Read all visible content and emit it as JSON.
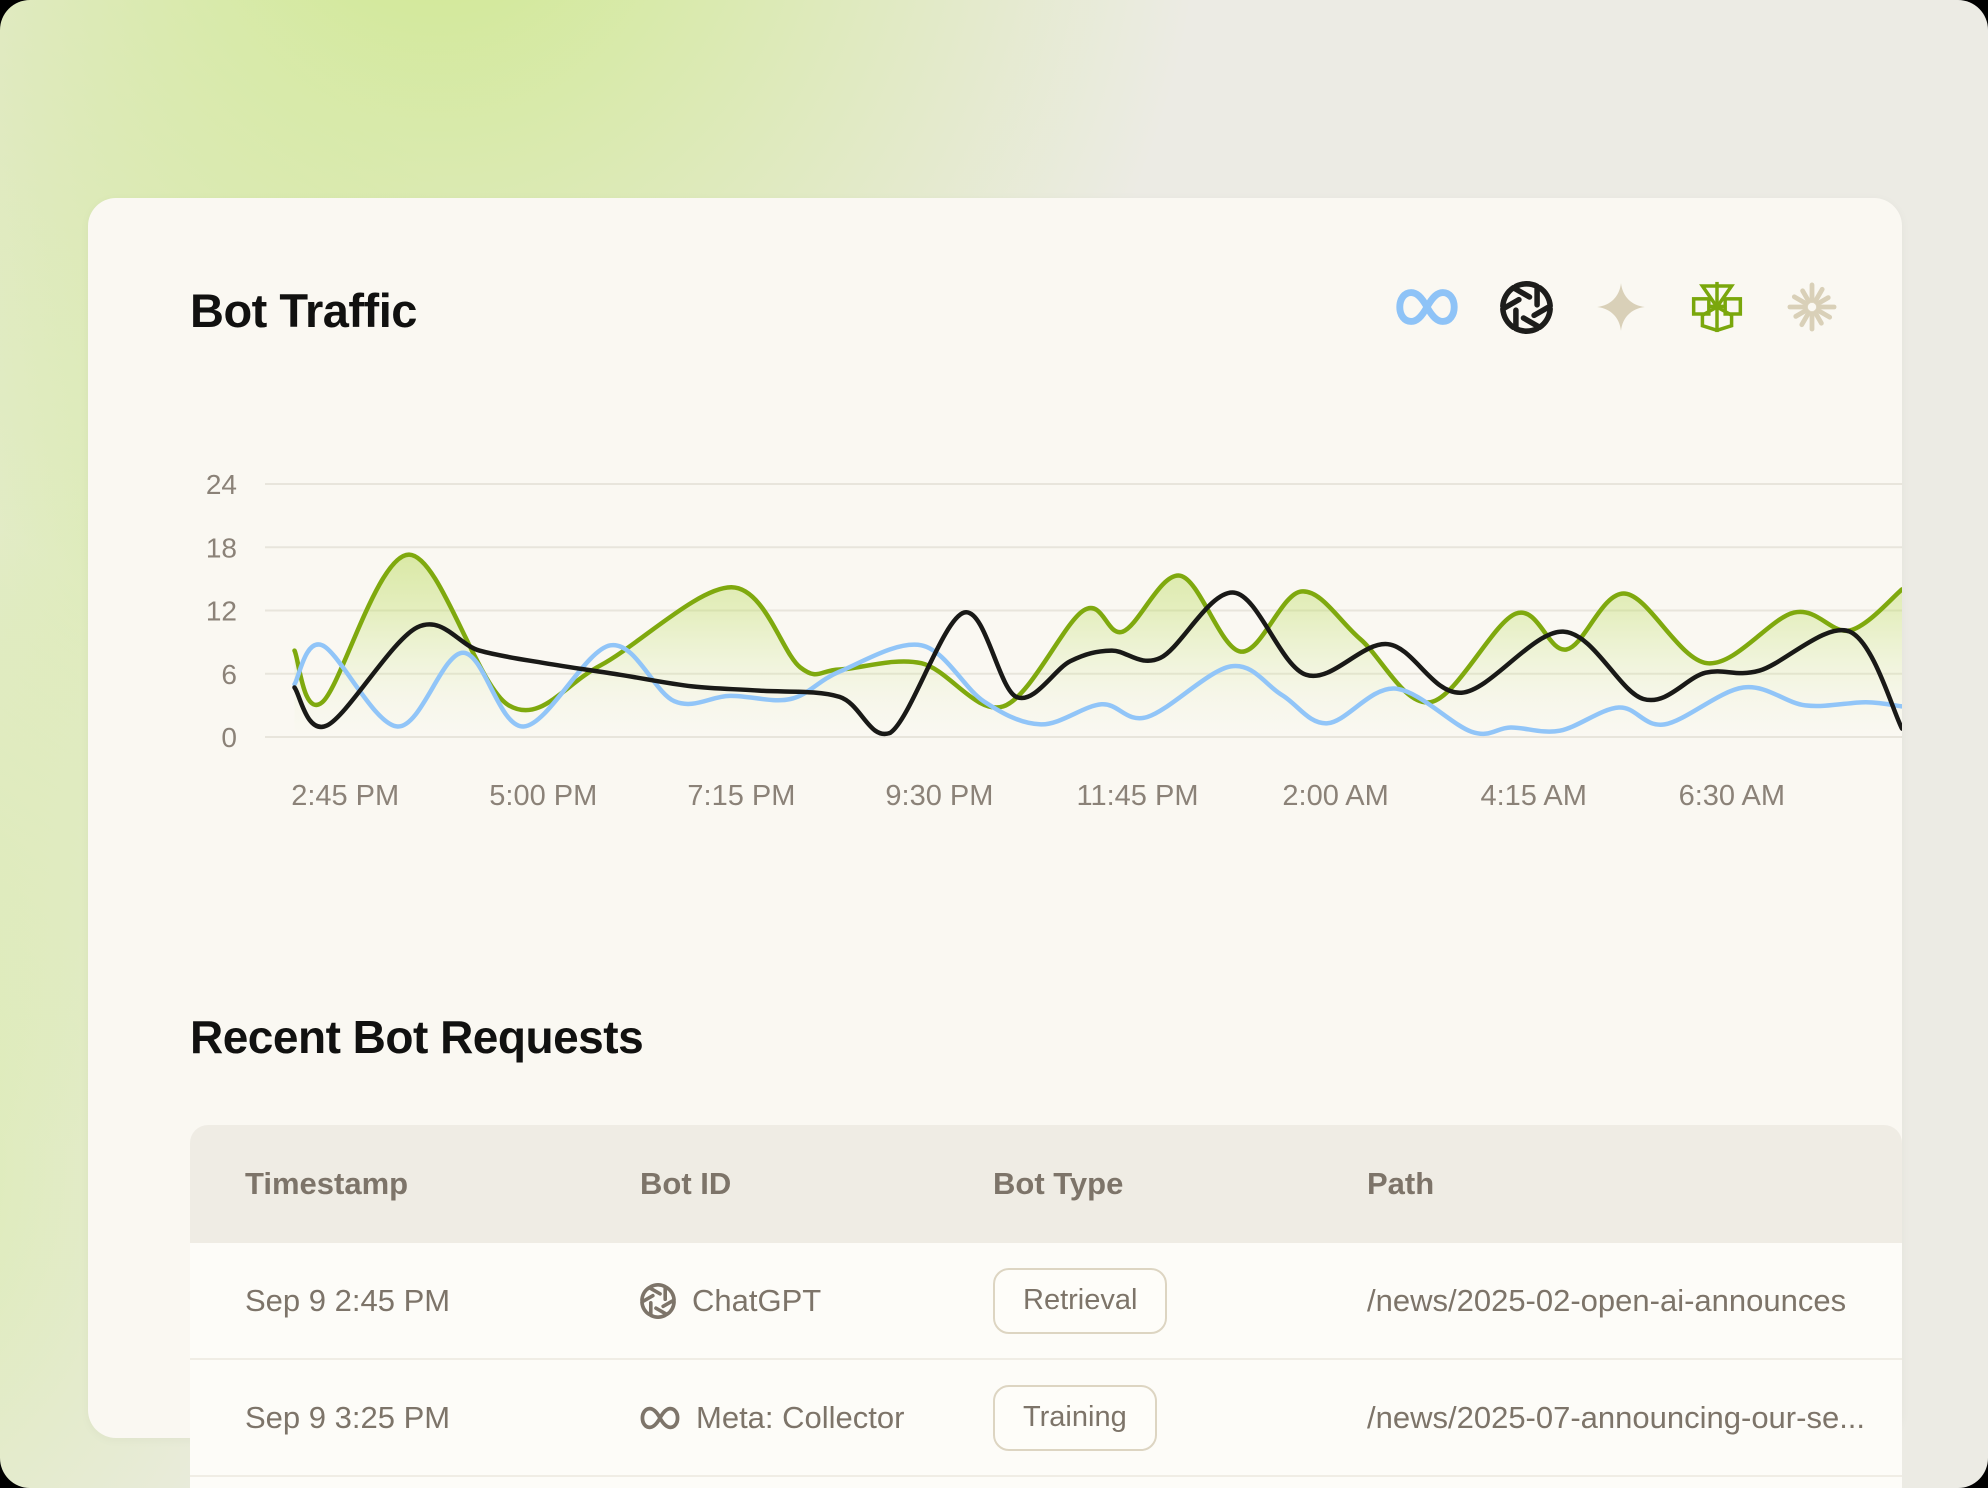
{
  "header": {
    "title": "Bot Traffic",
    "icons": [
      {
        "name": "meta",
        "color": "#8ec3f7"
      },
      {
        "name": "openai",
        "color": "#1d1d1b"
      },
      {
        "name": "sparkle",
        "color": "#d9d0b8"
      },
      {
        "name": "green-burst",
        "color": "#7aa70c"
      },
      {
        "name": "starburst",
        "color": "#d9d0b8"
      }
    ]
  },
  "chart_data": {
    "type": "line",
    "title": "Bot Traffic",
    "xlabel": "",
    "ylabel": "",
    "ylim": [
      0,
      24
    ],
    "yticks": [
      24,
      18,
      12,
      6,
      0
    ],
    "grid": true,
    "legend": "none",
    "xticks": [
      {
        "label": "2:45 PM",
        "x": 0.049
      },
      {
        "label": "5:00 PM",
        "x": 0.17
      },
      {
        "label": "7:15 PM",
        "x": 0.291
      },
      {
        "label": "9:30 PM",
        "x": 0.412
      },
      {
        "label": "11:45 PM",
        "x": 0.533
      },
      {
        "label": "2:00 AM",
        "x": 0.654
      },
      {
        "label": "4:15 AM",
        "x": 0.775
      },
      {
        "label": "6:30 AM",
        "x": 0.896
      }
    ],
    "colors": {
      "grid": "#e8e5dc",
      "tick_text": "#8b8278"
    },
    "series": [
      {
        "name": "green",
        "color": "#7fa90e",
        "fill": true,
        "points": [
          [
            0.018,
            8.2
          ],
          [
            0.035,
            3.3
          ],
          [
            0.088,
            17.3
          ],
          [
            0.149,
            3.0
          ],
          [
            0.205,
            6.8
          ],
          [
            0.285,
            14.2
          ],
          [
            0.327,
            6.6
          ],
          [
            0.351,
            6.4
          ],
          [
            0.401,
            7.0
          ],
          [
            0.451,
            2.9
          ],
          [
            0.5,
            12.0
          ],
          [
            0.524,
            10.0
          ],
          [
            0.559,
            15.3
          ],
          [
            0.596,
            8.1
          ],
          [
            0.633,
            13.8
          ],
          [
            0.669,
            9.3
          ],
          [
            0.712,
            3.3
          ],
          [
            0.764,
            11.7
          ],
          [
            0.795,
            8.3
          ],
          [
            0.831,
            13.6
          ],
          [
            0.881,
            7.0
          ],
          [
            0.934,
            11.8
          ],
          [
            0.968,
            10.1
          ],
          [
            1.0,
            14.0
          ]
        ]
      },
      {
        "name": "blue",
        "color": "#91c5f8",
        "fill": false,
        "points": [
          [
            0.018,
            5.0
          ],
          [
            0.035,
            8.7
          ],
          [
            0.081,
            1.0
          ],
          [
            0.121,
            8.0
          ],
          [
            0.158,
            1.0
          ],
          [
            0.211,
            8.7
          ],
          [
            0.25,
            3.4
          ],
          [
            0.284,
            3.9
          ],
          [
            0.321,
            3.6
          ],
          [
            0.351,
            6.2
          ],
          [
            0.401,
            8.7
          ],
          [
            0.439,
            3.4
          ],
          [
            0.474,
            1.2
          ],
          [
            0.511,
            3.1
          ],
          [
            0.539,
            1.9
          ],
          [
            0.59,
            6.7
          ],
          [
            0.621,
            4.0
          ],
          [
            0.649,
            1.3
          ],
          [
            0.69,
            4.6
          ],
          [
            0.737,
            0.5
          ],
          [
            0.761,
            0.9
          ],
          [
            0.791,
            0.6
          ],
          [
            0.827,
            2.8
          ],
          [
            0.855,
            1.2
          ],
          [
            0.903,
            4.7
          ],
          [
            0.941,
            3.0
          ],
          [
            0.978,
            3.3
          ],
          [
            1.0,
            2.9
          ]
        ]
      },
      {
        "name": "black",
        "color": "#191917",
        "fill": false,
        "points": [
          [
            0.018,
            4.7
          ],
          [
            0.038,
            1.1
          ],
          [
            0.093,
            10.4
          ],
          [
            0.131,
            8.2
          ],
          [
            0.171,
            7.0
          ],
          [
            0.217,
            5.9
          ],
          [
            0.261,
            4.8
          ],
          [
            0.302,
            4.4
          ],
          [
            0.351,
            3.8
          ],
          [
            0.382,
            0.4
          ],
          [
            0.427,
            11.8
          ],
          [
            0.459,
            3.8
          ],
          [
            0.492,
            7.2
          ],
          [
            0.517,
            8.2
          ],
          [
            0.547,
            7.5
          ],
          [
            0.592,
            13.7
          ],
          [
            0.636,
            5.9
          ],
          [
            0.686,
            8.8
          ],
          [
            0.731,
            4.2
          ],
          [
            0.793,
            10.0
          ],
          [
            0.842,
            3.6
          ],
          [
            0.88,
            6.1
          ],
          [
            0.913,
            6.3
          ],
          [
            0.968,
            10.0
          ],
          [
            1.0,
            0.8
          ]
        ]
      }
    ]
  },
  "table": {
    "title": "Recent Bot Requests",
    "columns": [
      "Timestamp",
      "Bot ID",
      "Bot Type",
      "Path"
    ],
    "rows": [
      {
        "timestamp": "Sep 9 2:45 PM",
        "bot_icon": "openai",
        "bot_id": "ChatGPT",
        "bot_type": "Retrieval",
        "path": "/news/2025-02-open-ai-announces"
      },
      {
        "timestamp": "Sep 9 3:25 PM",
        "bot_icon": "meta",
        "bot_id": "Meta: Collector",
        "bot_type": "Training",
        "path": "/news/2025-07-announcing-our-se..."
      }
    ]
  }
}
